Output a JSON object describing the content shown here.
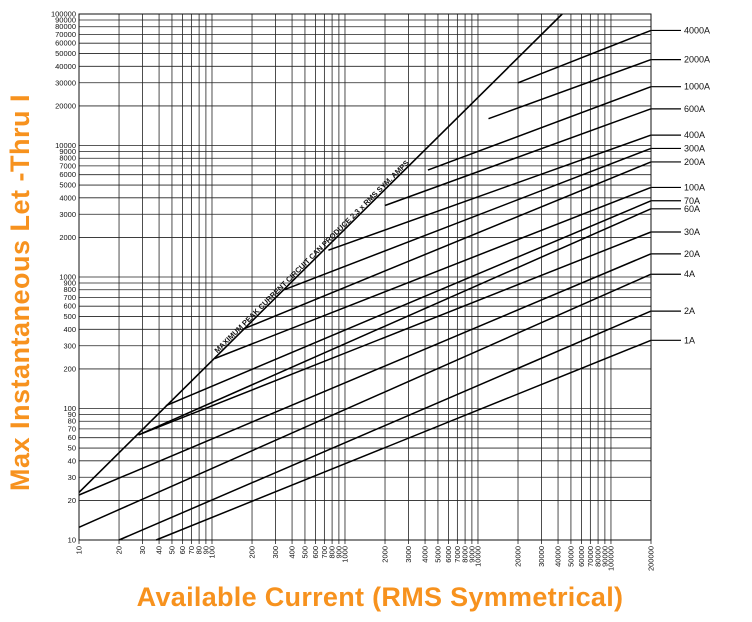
{
  "chart_data": {
    "type": "line",
    "title": "",
    "xlabel": "Available Current (RMS Symmetrical)",
    "ylabel": "Max Instantaneous Let -Thru I",
    "xscale": "log",
    "yscale": "log",
    "xlim": [
      10,
      200000
    ],
    "ylim": [
      10,
      100000
    ],
    "grid": true,
    "x_tick_labels": [
      "10",
      "20",
      "30",
      "40",
      "50",
      "60",
      "70",
      "80",
      "90",
      "100",
      "200",
      "300",
      "400",
      "500",
      "600",
      "700",
      "800",
      "900",
      "1000",
      "2000",
      "3000",
      "4000",
      "5000",
      "6000",
      "7000",
      "8000",
      "9000",
      "10000",
      "20000",
      "30000",
      "40000",
      "50000",
      "60000",
      "70000",
      "80000",
      "90000",
      "100000",
      "200000"
    ],
    "y_tick_labels": [
      "10",
      "20",
      "30",
      "40",
      "50",
      "60",
      "70",
      "80",
      "90",
      "100",
      "200",
      "300",
      "400",
      "500",
      "600",
      "700",
      "800",
      "900",
      "1000",
      "2000",
      "3000",
      "4000",
      "5000",
      "6000",
      "7000",
      "8000",
      "9000",
      "10000",
      "20000",
      "30000",
      "40000",
      "50000",
      "60000",
      "70000",
      "80000",
      "90000",
      "100000"
    ],
    "peak_line": {
      "label": "MAXIMUM PEAK CURRENT CIRCUIT CAN PRODUCE 2.3 x RMS SYM. AMPS",
      "x": [
        10,
        43000
      ],
      "y": [
        23,
        100000
      ]
    },
    "series": [
      {
        "name": "4000A",
        "x": [
          20000,
          200000
        ],
        "y": [
          30000,
          75000
        ]
      },
      {
        "name": "2000A",
        "x": [
          12000,
          200000
        ],
        "y": [
          16000,
          45000
        ]
      },
      {
        "name": "1000A",
        "x": [
          4200,
          200000
        ],
        "y": [
          6500,
          28000
        ]
      },
      {
        "name": "600A",
        "x": [
          2000,
          200000
        ],
        "y": [
          3500,
          19000
        ]
      },
      {
        "name": "400A",
        "x": [
          750,
          200000
        ],
        "y": [
          1600,
          12000
        ]
      },
      {
        "name": "300A",
        "x": [
          350,
          200000
        ],
        "y": [
          800,
          9500
        ]
      },
      {
        "name": "200A",
        "x": [
          170,
          200000
        ],
        "y": [
          400,
          7500
        ]
      },
      {
        "name": "100A",
        "x": [
          105,
          200000
        ],
        "y": [
          240,
          4800
        ]
      },
      {
        "name": "70A",
        "x": [
          45,
          200000
        ],
        "y": [
          105,
          3800
        ]
      },
      {
        "name": "60A",
        "x": [
          28,
          200000
        ],
        "y": [
          63,
          3300
        ]
      },
      {
        "name": "30A",
        "x": [
          28,
          200000
        ],
        "y": [
          63,
          2200
        ]
      },
      {
        "name": "20A",
        "x": [
          10,
          200000
        ],
        "y": [
          22,
          1500
        ]
      },
      {
        "name": "4A",
        "x": [
          10,
          200000
        ],
        "y": [
          12.5,
          1050
        ]
      },
      {
        "name": "2A",
        "x": [
          20,
          200000
        ],
        "y": [
          10,
          550
        ]
      },
      {
        "name": "1A",
        "x": [
          38,
          200000
        ],
        "y": [
          10,
          330
        ]
      }
    ],
    "legend_position": "right"
  }
}
